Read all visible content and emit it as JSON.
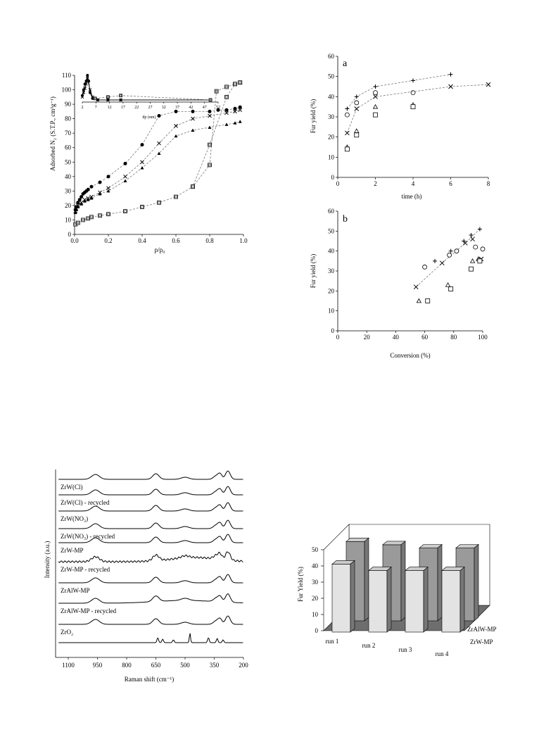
{
  "chart_data": [
    {
      "id": "isotherm",
      "type": "scatter",
      "xlabel": "p/p₀",
      "ylabel": "Adsorbed N₂ (S.T.P., cm³g⁻¹)",
      "xlim": [
        0,
        1
      ],
      "ylim": [
        0,
        110
      ],
      "xticks": [
        "0.0",
        "0.2",
        "0.4",
        "0.6",
        "0.8",
        "1.0"
      ],
      "yticks": [
        "0",
        "10",
        "20",
        "30",
        "40",
        "50",
        "60",
        "70",
        "80",
        "90",
        "100",
        "110"
      ],
      "grid": false,
      "series": [
        {
          "marker": "filled-circle",
          "x": [
            0.005,
            0.01,
            0.02,
            0.03,
            0.04,
            0.05,
            0.06,
            0.07,
            0.08,
            0.1,
            0.15,
            0.2,
            0.3,
            0.4,
            0.5,
            0.6,
            0.7,
            0.8,
            0.85,
            0.9,
            0.95,
            0.98
          ],
          "y": [
            17,
            19,
            22,
            24,
            26,
            28,
            29,
            30,
            31,
            33,
            36,
            40,
            49,
            62,
            82,
            85,
            85,
            85,
            86,
            86,
            87,
            88
          ]
        },
        {
          "marker": "cross",
          "x": [
            0.005,
            0.01,
            0.02,
            0.04,
            0.06,
            0.08,
            0.1,
            0.15,
            0.2,
            0.3,
            0.4,
            0.5,
            0.6,
            0.7,
            0.8,
            0.9,
            0.95,
            0.98
          ],
          "y": [
            16,
            18,
            20,
            22,
            24,
            25,
            26,
            29,
            32,
            40,
            50,
            63,
            75,
            80,
            82,
            84,
            85,
            86
          ]
        },
        {
          "marker": "filled-triangle",
          "x": [
            0.005,
            0.01,
            0.02,
            0.04,
            0.06,
            0.08,
            0.1,
            0.15,
            0.2,
            0.3,
            0.4,
            0.5,
            0.6,
            0.7,
            0.8,
            0.9,
            0.95,
            0.98
          ],
          "y": [
            15,
            17,
            19,
            21,
            23,
            24,
            25,
            28,
            30,
            37,
            46,
            56,
            68,
            72,
            74,
            76,
            77,
            78
          ]
        },
        {
          "marker": "open-square",
          "x": [
            0.005,
            0.02,
            0.05,
            0.08,
            0.1,
            0.15,
            0.2,
            0.3,
            0.4,
            0.5,
            0.6,
            0.7,
            0.8,
            0.84,
            0.9,
            0.95,
            0.98
          ],
          "y": [
            7,
            8,
            10,
            11,
            12,
            13,
            14,
            16,
            19,
            22,
            26,
            33,
            48,
            99,
            102,
            104,
            105
          ]
        },
        {
          "marker": "open-square",
          "x": [
            0.98,
            0.95,
            0.9,
            0.8,
            0.7
          ],
          "y": [
            105,
            104,
            95,
            62,
            33
          ]
        }
      ],
      "inset": {
        "xlabel": "dp (nm)",
        "xlim": [
          2,
          55
        ],
        "ylim": [
          90,
          110
        ],
        "xticks": [
          "2",
          "7",
          "12",
          "17",
          "22",
          "27",
          "32",
          "37",
          "42",
          "47",
          "52"
        ],
        "series": [
          {
            "marker": "filled-circle",
            "x": [
              2,
              2.5,
              3,
              3.5,
              4,
              4.5,
              5,
              6,
              8,
              12,
              17,
              52
            ],
            "y": [
              96,
              100,
              104,
              106,
              110,
              106,
              98,
              94,
              93,
              93,
              93,
              93
            ]
          },
          {
            "marker": "cross",
            "x": [
              2,
              2.5,
              3,
              3.5,
              4,
              5,
              6,
              8,
              12,
              17,
              52
            ],
            "y": [
              95,
              98,
              101,
              104,
              108,
              100,
              95,
              93,
              93,
              93,
              93
            ]
          },
          {
            "marker": "open-square",
            "x": [
              7,
              12,
              17,
              52
            ],
            "y": [
              94,
              95,
              96,
              93
            ]
          }
        ]
      }
    },
    {
      "id": "yield-time",
      "type": "scatter",
      "panel_label": "a",
      "xlabel": "time (h)",
      "ylabel": "Fur yield (%)",
      "xlim": [
        0,
        8
      ],
      "ylim": [
        0,
        60
      ],
      "xticks": [
        "0",
        "2",
        "4",
        "6",
        "8"
      ],
      "yticks": [
        "0",
        "10",
        "20",
        "30",
        "40",
        "50",
        "60"
      ],
      "grid": false,
      "series": [
        {
          "marker": "plus",
          "x": [
            0.5,
            1,
            2,
            4,
            6
          ],
          "y": [
            34,
            40,
            45,
            48,
            51
          ]
        },
        {
          "marker": "circle",
          "x": [
            0.5,
            1,
            2,
            4
          ],
          "y": [
            31,
            37,
            42,
            42
          ]
        },
        {
          "marker": "cross",
          "x": [
            0.5,
            1,
            2,
            6,
            8
          ],
          "y": [
            22,
            34,
            40,
            45,
            46
          ]
        },
        {
          "marker": "triangle",
          "x": [
            0.5,
            1,
            2,
            4
          ],
          "y": [
            15,
            23,
            35,
            36
          ]
        },
        {
          "marker": "square",
          "x": [
            0.5,
            1,
            2,
            4
          ],
          "y": [
            14,
            21,
            31,
            35
          ]
        }
      ]
    },
    {
      "id": "yield-conversion",
      "type": "scatter",
      "panel_label": "b",
      "xlabel": "Conversion (%)",
      "ylabel": "Fur yield (%)",
      "xlim": [
        0,
        100
      ],
      "ylim": [
        0,
        60
      ],
      "xticks": [
        "0",
        "20",
        "40",
        "60",
        "80",
        "100"
      ],
      "yticks": [
        "0",
        "10",
        "20",
        "30",
        "40",
        "50",
        "60"
      ],
      "grid": false,
      "series": [
        {
          "marker": "plus",
          "x": [
            67,
            78,
            87,
            92,
            98
          ],
          "y": [
            35,
            40,
            45,
            48,
            51
          ]
        },
        {
          "marker": "circle",
          "x": [
            60,
            77,
            82,
            95,
            100
          ],
          "y": [
            32,
            38,
            40,
            42,
            41
          ]
        },
        {
          "marker": "cross",
          "x": [
            54,
            72,
            88,
            93,
            99
          ],
          "y": [
            22,
            34,
            44,
            46,
            36
          ]
        },
        {
          "marker": "triangle",
          "x": [
            56,
            76,
            93,
            97
          ],
          "y": [
            15,
            23,
            35,
            36
          ]
        },
        {
          "marker": "square",
          "x": [
            62,
            78,
            92,
            98
          ],
          "y": [
            15,
            21,
            31,
            35
          ]
        }
      ]
    },
    {
      "id": "raman",
      "type": "line",
      "xlabel": "Raman shift (cm⁻¹)",
      "ylabel": "Intensity (a.u.)",
      "xlim": [
        1150,
        200
      ],
      "xticks": [
        "1100",
        "950",
        "800",
        "650",
        "500",
        "350",
        "200"
      ],
      "labels": [
        "ZrW(Cl)",
        "ZrW(Cl) - recycled",
        "ZrW(NO₃)",
        "ZrW(NO₃) - recycled",
        "ZrW-MP",
        "ZrW-MP - recycled",
        "ZrAlW-MP",
        "ZrAlW-MP - recycled",
        "ZrO₂"
      ]
    },
    {
      "id": "runs",
      "type": "bar",
      "ylabel": "Fur Yield (%)",
      "ylim": [
        0,
        50
      ],
      "yticks": [
        "0",
        "10",
        "20",
        "30",
        "40",
        "50"
      ],
      "categories": [
        "run 1",
        "run 2",
        "run 3",
        "run 4"
      ],
      "series": [
        {
          "name": "ZrW-MP",
          "values": [
            42,
            38,
            38,
            38
          ]
        },
        {
          "name": "ZrAlW-MP",
          "values": [
            49,
            47,
            45,
            45
          ]
        }
      ]
    }
  ]
}
